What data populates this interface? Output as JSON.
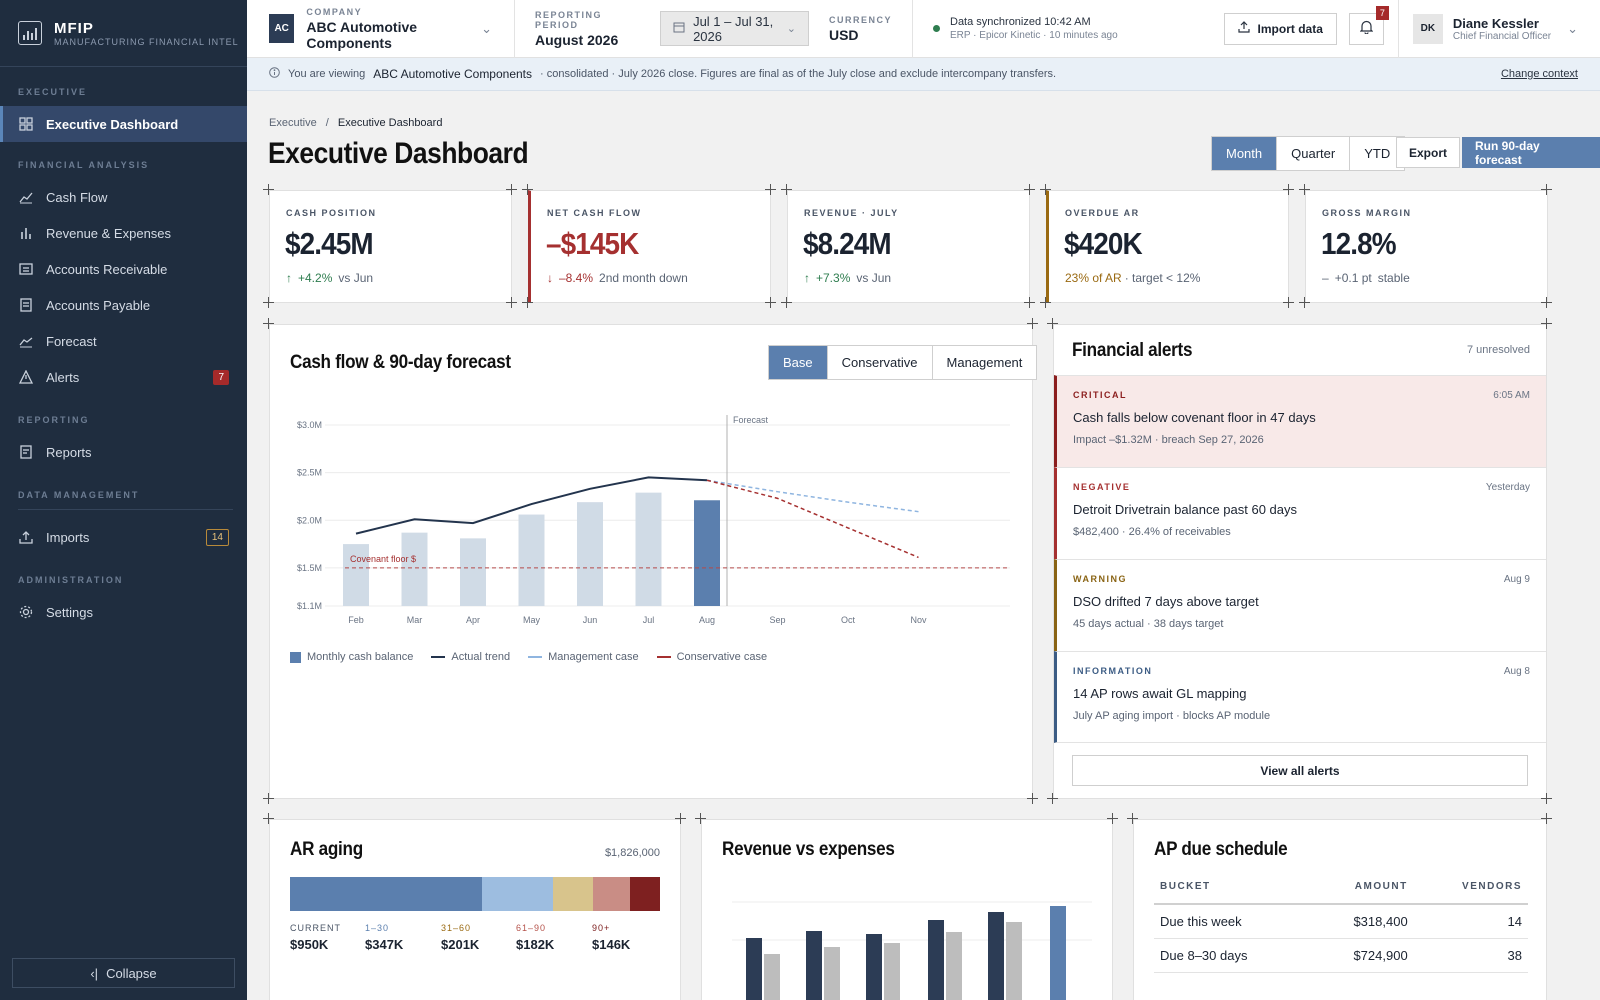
{
  "brand": {
    "name": "MFIP",
    "subtitle": "MANUFACTURING FINANCIAL INTELLIGE"
  },
  "sidebar": {
    "sections": {
      "executive": "EXECUTIVE",
      "financial": "FINANCIAL ANALYSIS",
      "reporting": "REPORTING",
      "data": "DATA MANAGEMENT",
      "admin": "ADMINISTRATION"
    },
    "items": {
      "dashboard": "Executive Dashboard",
      "cashflow": "Cash Flow",
      "revexp": "Revenue & Expenses",
      "ar": "Accounts Receivable",
      "ap": "Accounts Payable",
      "forecast": "Forecast",
      "alerts": "Alerts",
      "alerts_count": "7",
      "reports": "Reports",
      "imports": "Imports",
      "imports_count": "14",
      "settings": "Settings"
    },
    "collapse": "Collapse"
  },
  "topbar": {
    "company_label": "COMPANY",
    "company_initials": "AC",
    "company": "ABC Automotive Components",
    "period_label": "REPORTING PERIOD",
    "period": "August 2026",
    "date_range": "Jul 1 – Jul 31, 2026",
    "currency_label": "CURRENCY",
    "currency": "USD",
    "sync_title": "Data synchronized 10:42 AM",
    "sync_sub": "ERP · Epicor Kinetic · 10 minutes ago",
    "import": "Import data",
    "notif_count": "7",
    "user_initials": "DK",
    "user_name": "Diane Kessler",
    "user_role": "Chief Financial Officer"
  },
  "info": {
    "prefix": "You are viewing",
    "company": "ABC Automotive Components",
    "text": "· consolidated · July 2026 close. Figures are final as of the July close and exclude intercompany transfers.",
    "link": "Change context"
  },
  "page": {
    "crumb_root": "Executive",
    "crumb_sep": "/",
    "crumb_cur": "Executive Dashboard",
    "title": "Executive Dashboard",
    "periods": [
      "Month",
      "Quarter",
      "YTD"
    ],
    "export": "Export",
    "run": "Run 90-day forecast"
  },
  "kpis": [
    {
      "label": "CASH POSITION",
      "value": "$2.45M",
      "arrow": "↑",
      "delta": "+4.2%",
      "note": "vs Jun"
    },
    {
      "label": "NET CASH FLOW",
      "value": "–$145K",
      "arrow": "↓",
      "delta": "–8.4%",
      "note": "2nd month down"
    },
    {
      "label": "REVENUE · JULY",
      "value": "$8.24M",
      "arrow": "↑",
      "delta": "+7.3%",
      "note": "vs Jun"
    },
    {
      "label": "OVERDUE AR",
      "value": "$420K",
      "arrow": "",
      "delta": "23% of AR",
      "note": "· target < 12%"
    },
    {
      "label": "GROSS MARGIN",
      "value": "12.8%",
      "arrow": "–",
      "delta": "+0.1 pt",
      "note": "stable"
    }
  ],
  "cashflow": {
    "title": "Cash flow & 90-day forecast",
    "scenarios": [
      "Base",
      "Conservative",
      "Management"
    ],
    "forecast_label": "Forecast",
    "floor_label": "Covenant floor $",
    "legend": [
      "Monthly cash balance",
      "Actual trend",
      "Management case",
      "Conservative case"
    ]
  },
  "chart_data": {
    "type": "bar",
    "categories": [
      "Feb",
      "Mar",
      "Apr",
      "May",
      "Jun",
      "Jul",
      "Aug",
      "Sep",
      "Oct",
      "Nov"
    ],
    "y_ticks": [
      "$3.0M",
      "$2.5M",
      "$2.0M",
      "$1.5M",
      "$1.1M"
    ],
    "ylim": [
      1.1,
      3.0
    ],
    "series": [
      {
        "name": "Monthly cash balance",
        "kind": "bar",
        "values": [
          1.75,
          1.87,
          1.81,
          2.06,
          2.19,
          2.29,
          2.21,
          null,
          null,
          null
        ]
      },
      {
        "name": "Actual trend",
        "kind": "line",
        "values": [
          1.86,
          2.01,
          1.97,
          2.17,
          2.33,
          2.45,
          2.42,
          null,
          null,
          null
        ]
      },
      {
        "name": "Management case",
        "kind": "line",
        "values": [
          null,
          null,
          null,
          null,
          null,
          null,
          2.42,
          2.3,
          2.19,
          2.09
        ]
      },
      {
        "name": "Conservative case",
        "kind": "line",
        "values": [
          null,
          null,
          null,
          null,
          null,
          null,
          2.42,
          2.23,
          1.92,
          1.61
        ]
      }
    ],
    "covenant_floor": 1.5,
    "forecast_start": "Aug"
  },
  "alerts": {
    "title": "Financial alerts",
    "count": "7 unresolved",
    "view_all": "View all alerts",
    "items": [
      {
        "sev": "CRITICAL",
        "time": "6:05 AM",
        "title": "Cash falls below covenant floor in 47 days",
        "detail": "Impact –$1.32M · breach Sep 27, 2026",
        "color": "#8b1e1e"
      },
      {
        "sev": "NEGATIVE",
        "time": "Yesterday",
        "title": "Detroit Drivetrain balance past 60 days",
        "detail": "$482,400 · 26.4% of receivables",
        "color": "#a53030"
      },
      {
        "sev": "WARNING",
        "time": "Aug 9",
        "title": "DSO drifted 7 days above target",
        "detail": "45 days actual · 38 days target",
        "color": "#8a6414"
      },
      {
        "sev": "INFORMATION",
        "time": "Aug 8",
        "title": "14 AP rows await GL mapping",
        "detail": "July AP aging import · blocks AP module",
        "color": "#3c5c84"
      }
    ]
  },
  "ar": {
    "title": "AR aging",
    "total": "$1,826,000",
    "buckets": [
      {
        "label": "CURRENT",
        "value": "$950K",
        "share": 0.52,
        "color": "#5b7fae"
      },
      {
        "label": "1–30",
        "value": "$347K",
        "share": 0.19,
        "color": "#9dbde0"
      },
      {
        "label": "31–60",
        "value": "$201K",
        "share": 0.11,
        "color": "#d8c48c"
      },
      {
        "label": "61–90",
        "value": "$182K",
        "share": 0.1,
        "color": "#c98d85"
      },
      {
        "label": "90+",
        "value": "$146K",
        "share": 0.08,
        "color": "#7e2020"
      }
    ]
  },
  "revexp": {
    "title": "Revenue vs expenses"
  },
  "ap": {
    "title": "AP due schedule",
    "headers": [
      "BUCKET",
      "AMOUNT",
      "VENDORS"
    ],
    "rows": [
      [
        "Due this week",
        "$318,400",
        "14"
      ],
      [
        "Due 8–30 days",
        "$724,900",
        "38"
      ]
    ]
  }
}
